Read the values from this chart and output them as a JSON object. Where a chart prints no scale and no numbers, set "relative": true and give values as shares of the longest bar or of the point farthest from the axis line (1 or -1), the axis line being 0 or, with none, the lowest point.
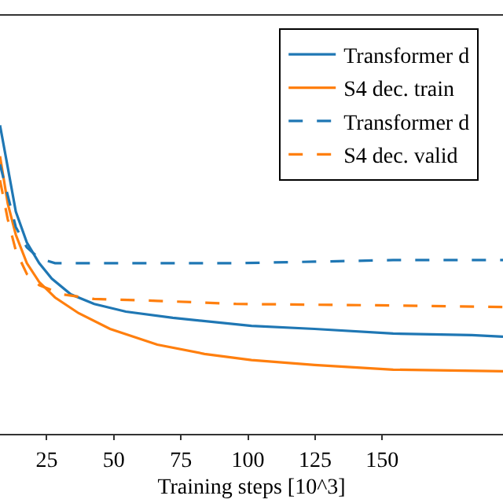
{
  "chart_data": {
    "type": "line",
    "xlabel": "Training steps [10^3]",
    "relative": true,
    "xlim": [
      7.6,
      195
    ],
    "xticks": [
      25,
      50,
      75,
      100,
      125,
      150
    ],
    "legend": "top right",
    "grid": false,
    "series": [
      {
        "name": "Transformer d",
        "color": "#1f77b4",
        "line_style": "solid",
        "x": [
          7.6,
          10.5,
          13.5,
          17.6,
          22.2,
          26.9,
          34,
          42.7,
          54.5,
          72.0,
          101.3,
          124.8,
          154.1,
          183.4,
          195
        ],
        "values": [
          1.0,
          0.863,
          0.72,
          0.62,
          0.553,
          0.503,
          0.452,
          0.421,
          0.396,
          0.376,
          0.35,
          0.34,
          0.325,
          0.32,
          0.315
        ]
      },
      {
        "name": "S4 dec. train",
        "color": "#ff7f0e",
        "line_style": "solid",
        "x": [
          7.6,
          10.5,
          13.5,
          17.6,
          22.2,
          28.1,
          36.9,
          48.6,
          66.2,
          83.8,
          101.3,
          124.8,
          154.1,
          195
        ],
        "values": [
          0.9,
          0.746,
          0.645,
          0.553,
          0.492,
          0.442,
          0.391,
          0.34,
          0.289,
          0.259,
          0.239,
          0.223,
          0.208,
          0.203
        ]
      },
      {
        "name": "Transformer d",
        "color": "#1f77b4",
        "line_style": "dashed",
        "x": [
          7.6,
          10.5,
          13.5,
          17.6,
          22.2,
          28.1,
          42.7,
          66.2,
          95.5,
          124.8,
          154.1,
          195
        ],
        "values": [
          0.873,
          0.772,
          0.67,
          0.604,
          0.569,
          0.553,
          0.553,
          0.553,
          0.553,
          0.558,
          0.563,
          0.563
        ]
      },
      {
        "name": "S4 dec. valid",
        "color": "#ff7f0e",
        "line_style": "dashed",
        "x": [
          7.6,
          10.5,
          13.5,
          17.6,
          22.2,
          31,
          42.7,
          66.2,
          95.5,
          154.1,
          195
        ],
        "values": [
          0.822,
          0.695,
          0.594,
          0.518,
          0.482,
          0.452,
          0.437,
          0.431,
          0.421,
          0.416,
          0.411
        ]
      }
    ]
  }
}
